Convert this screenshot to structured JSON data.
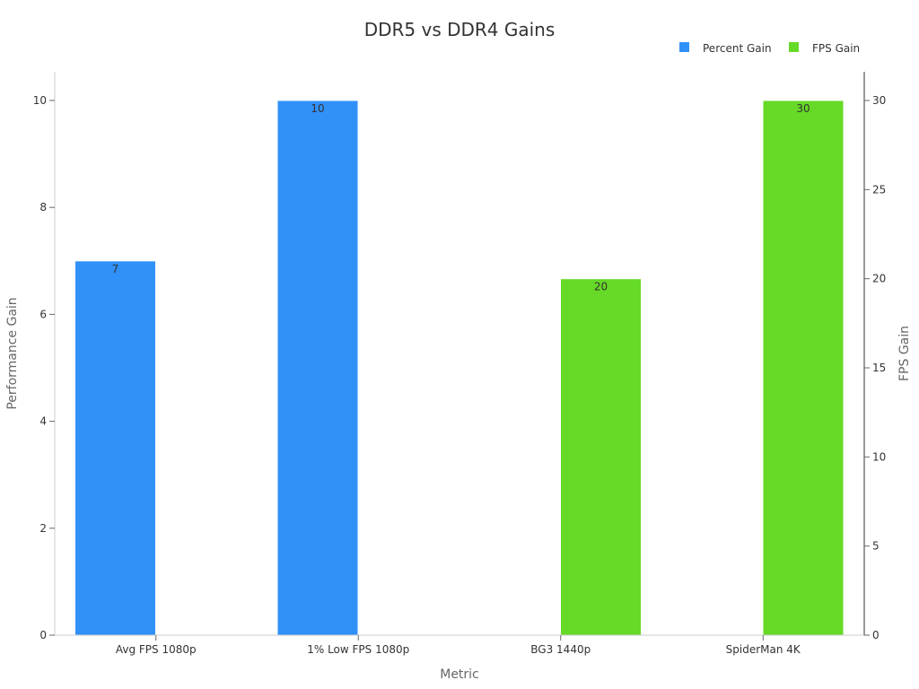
{
  "chart_data": {
    "type": "bar",
    "title": "DDR5 vs DDR4 Gains",
    "xlabel": "Metric",
    "ylabel": "Performance Gain",
    "y2label": "FPS Gain",
    "categories": [
      "Avg FPS 1080p",
      "1% Low FPS 1080p",
      "BG3 1440p",
      "SpiderMan 4K"
    ],
    "ylim": [
      0,
      10
    ],
    "y2lim": [
      0,
      30
    ],
    "yticks": [
      0,
      2,
      4,
      6,
      8,
      10
    ],
    "y2ticks": [
      0,
      5,
      10,
      15,
      20,
      25,
      30
    ],
    "legend_position": "top-right",
    "grid": false,
    "series": [
      {
        "name": "Percent Gain",
        "axis": "left",
        "color": "#3091f9",
        "values": [
          7,
          10,
          null,
          null
        ]
      },
      {
        "name": "FPS Gain",
        "axis": "right",
        "color": "#66da26",
        "values": [
          null,
          null,
          20,
          30
        ]
      }
    ]
  }
}
